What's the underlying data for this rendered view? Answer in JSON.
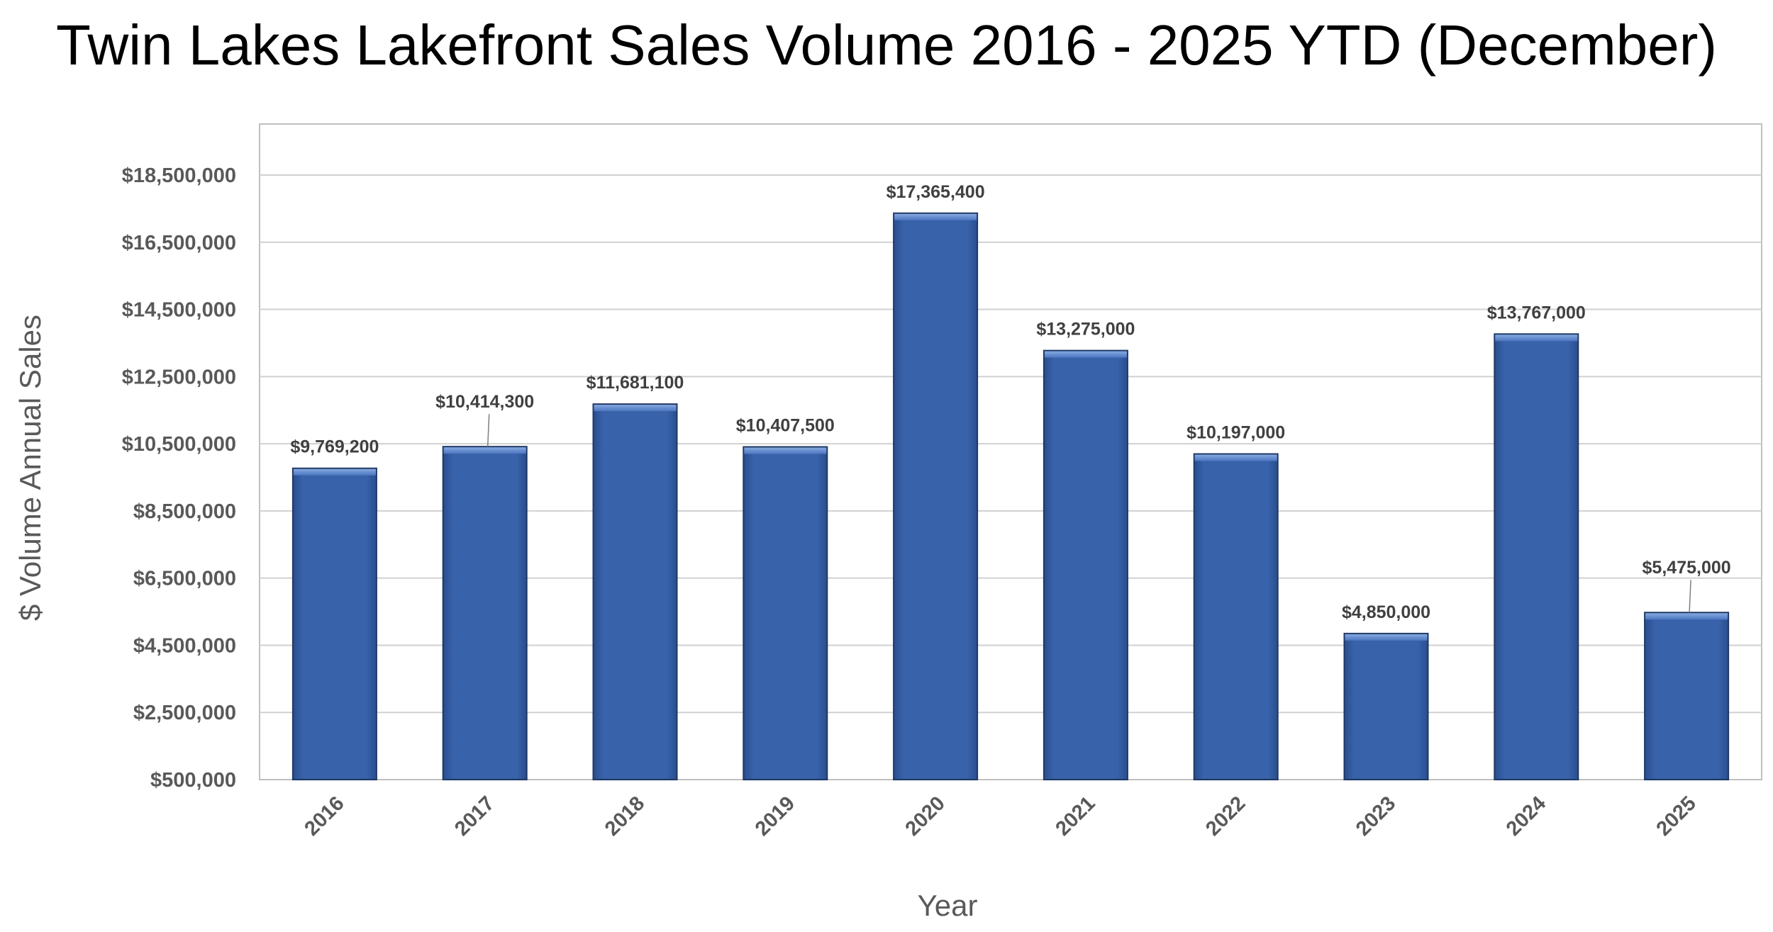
{
  "chart_data": {
    "type": "bar",
    "title": "Twin Lakes Lakefront Sales Volume 2016 - 2025 YTD (December)",
    "xlabel": "Year",
    "ylabel": "$ Volume Annual Sales",
    "categories": [
      "2016",
      "2017",
      "2018",
      "2019",
      "2020",
      "2021",
      "2022",
      "2023",
      "2024",
      "2025"
    ],
    "values": [
      9769200,
      10414300,
      11681100,
      10407500,
      17365400,
      13275000,
      10197000,
      4850000,
      13767000,
      5475000
    ],
    "data_labels": [
      "$9,769,200",
      "$10,414,300",
      "$11,681,100",
      "$10,407,500",
      "$17,365,400",
      "$13,275,000",
      "$10,197,000",
      "$4,850,000",
      "$13,767,000",
      "$5,475,000"
    ],
    "ylim": [
      500000,
      20000000
    ],
    "yticks": [
      500000,
      2500000,
      4500000,
      6500000,
      8500000,
      10500000,
      12500000,
      14500000,
      16500000,
      18500000
    ],
    "ytick_labels": [
      "$500,000",
      "$2,500,000",
      "$4,500,000",
      "$6,500,000",
      "$8,500,000",
      "$10,500,000",
      "$12,500,000",
      "$14,500,000",
      "$16,500,000",
      "$18,500,000"
    ],
    "grid": true,
    "legend": "none",
    "bar_color": "#3660A8",
    "bar_edge_color": "#1F3864",
    "gridline_color": "#D0D0D0"
  }
}
